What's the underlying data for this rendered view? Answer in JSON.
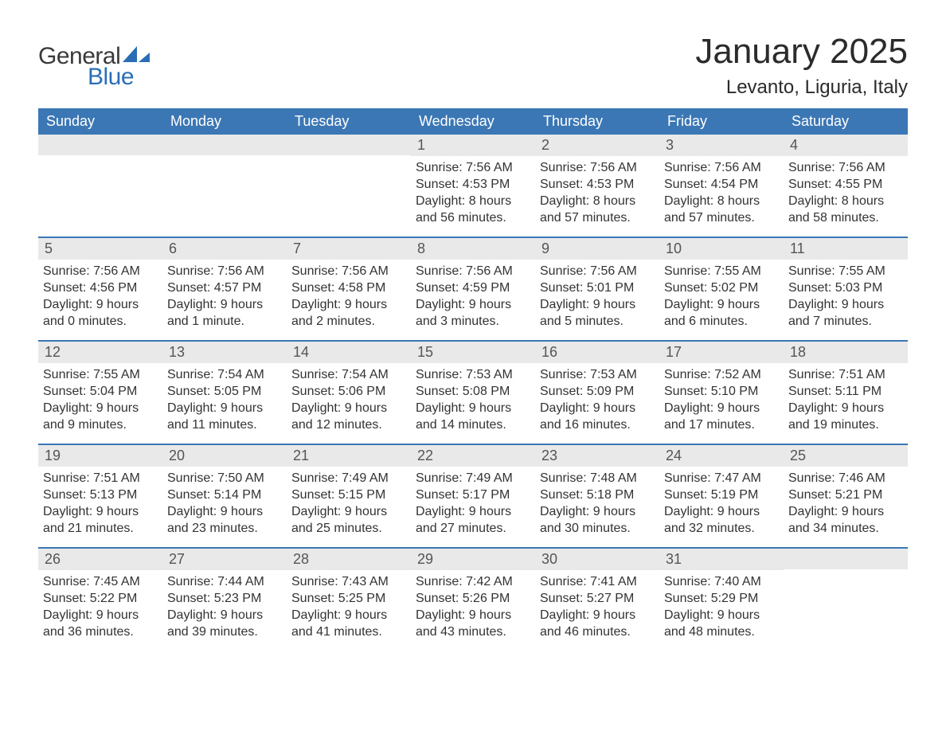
{
  "logo": {
    "word1": "General",
    "word2": "Blue",
    "accent_color": "#2a6eb6",
    "text_color": "#3a3a3a"
  },
  "title": "January 2025",
  "location": "Levanto, Liguria, Italy",
  "colors": {
    "header_bg": "#3c77b5",
    "header_text": "#ffffff",
    "daynum_bg": "#e9e9e9",
    "daynum_text": "#555555",
    "body_text": "#333333",
    "week_divider": "#3c77b5",
    "page_bg": "#ffffff"
  },
  "fonts": {
    "title_size_pt": 33,
    "location_size_pt": 18,
    "dayhead_size_pt": 14,
    "daynum_size_pt": 14,
    "body_size_pt": 12
  },
  "layout": {
    "columns": 7,
    "rows": 5,
    "start_day_index": 3
  },
  "weekdays": [
    "Sunday",
    "Monday",
    "Tuesday",
    "Wednesday",
    "Thursday",
    "Friday",
    "Saturday"
  ],
  "weeks": [
    [
      null,
      null,
      null,
      {
        "n": "1",
        "sunrise": "Sunrise: 7:56 AM",
        "sunset": "Sunset: 4:53 PM",
        "dl1": "Daylight: 8 hours",
        "dl2": "and 56 minutes."
      },
      {
        "n": "2",
        "sunrise": "Sunrise: 7:56 AM",
        "sunset": "Sunset: 4:53 PM",
        "dl1": "Daylight: 8 hours",
        "dl2": "and 57 minutes."
      },
      {
        "n": "3",
        "sunrise": "Sunrise: 7:56 AM",
        "sunset": "Sunset: 4:54 PM",
        "dl1": "Daylight: 8 hours",
        "dl2": "and 57 minutes."
      },
      {
        "n": "4",
        "sunrise": "Sunrise: 7:56 AM",
        "sunset": "Sunset: 4:55 PM",
        "dl1": "Daylight: 8 hours",
        "dl2": "and 58 minutes."
      }
    ],
    [
      {
        "n": "5",
        "sunrise": "Sunrise: 7:56 AM",
        "sunset": "Sunset: 4:56 PM",
        "dl1": "Daylight: 9 hours",
        "dl2": "and 0 minutes."
      },
      {
        "n": "6",
        "sunrise": "Sunrise: 7:56 AM",
        "sunset": "Sunset: 4:57 PM",
        "dl1": "Daylight: 9 hours",
        "dl2": "and 1 minute."
      },
      {
        "n": "7",
        "sunrise": "Sunrise: 7:56 AM",
        "sunset": "Sunset: 4:58 PM",
        "dl1": "Daylight: 9 hours",
        "dl2": "and 2 minutes."
      },
      {
        "n": "8",
        "sunrise": "Sunrise: 7:56 AM",
        "sunset": "Sunset: 4:59 PM",
        "dl1": "Daylight: 9 hours",
        "dl2": "and 3 minutes."
      },
      {
        "n": "9",
        "sunrise": "Sunrise: 7:56 AM",
        "sunset": "Sunset: 5:01 PM",
        "dl1": "Daylight: 9 hours",
        "dl2": "and 5 minutes."
      },
      {
        "n": "10",
        "sunrise": "Sunrise: 7:55 AM",
        "sunset": "Sunset: 5:02 PM",
        "dl1": "Daylight: 9 hours",
        "dl2": "and 6 minutes."
      },
      {
        "n": "11",
        "sunrise": "Sunrise: 7:55 AM",
        "sunset": "Sunset: 5:03 PM",
        "dl1": "Daylight: 9 hours",
        "dl2": "and 7 minutes."
      }
    ],
    [
      {
        "n": "12",
        "sunrise": "Sunrise: 7:55 AM",
        "sunset": "Sunset: 5:04 PM",
        "dl1": "Daylight: 9 hours",
        "dl2": "and 9 minutes."
      },
      {
        "n": "13",
        "sunrise": "Sunrise: 7:54 AM",
        "sunset": "Sunset: 5:05 PM",
        "dl1": "Daylight: 9 hours",
        "dl2": "and 11 minutes."
      },
      {
        "n": "14",
        "sunrise": "Sunrise: 7:54 AM",
        "sunset": "Sunset: 5:06 PM",
        "dl1": "Daylight: 9 hours",
        "dl2": "and 12 minutes."
      },
      {
        "n": "15",
        "sunrise": "Sunrise: 7:53 AM",
        "sunset": "Sunset: 5:08 PM",
        "dl1": "Daylight: 9 hours",
        "dl2": "and 14 minutes."
      },
      {
        "n": "16",
        "sunrise": "Sunrise: 7:53 AM",
        "sunset": "Sunset: 5:09 PM",
        "dl1": "Daylight: 9 hours",
        "dl2": "and 16 minutes."
      },
      {
        "n": "17",
        "sunrise": "Sunrise: 7:52 AM",
        "sunset": "Sunset: 5:10 PM",
        "dl1": "Daylight: 9 hours",
        "dl2": "and 17 minutes."
      },
      {
        "n": "18",
        "sunrise": "Sunrise: 7:51 AM",
        "sunset": "Sunset: 5:11 PM",
        "dl1": "Daylight: 9 hours",
        "dl2": "and 19 minutes."
      }
    ],
    [
      {
        "n": "19",
        "sunrise": "Sunrise: 7:51 AM",
        "sunset": "Sunset: 5:13 PM",
        "dl1": "Daylight: 9 hours",
        "dl2": "and 21 minutes."
      },
      {
        "n": "20",
        "sunrise": "Sunrise: 7:50 AM",
        "sunset": "Sunset: 5:14 PM",
        "dl1": "Daylight: 9 hours",
        "dl2": "and 23 minutes."
      },
      {
        "n": "21",
        "sunrise": "Sunrise: 7:49 AM",
        "sunset": "Sunset: 5:15 PM",
        "dl1": "Daylight: 9 hours",
        "dl2": "and 25 minutes."
      },
      {
        "n": "22",
        "sunrise": "Sunrise: 7:49 AM",
        "sunset": "Sunset: 5:17 PM",
        "dl1": "Daylight: 9 hours",
        "dl2": "and 27 minutes."
      },
      {
        "n": "23",
        "sunrise": "Sunrise: 7:48 AM",
        "sunset": "Sunset: 5:18 PM",
        "dl1": "Daylight: 9 hours",
        "dl2": "and 30 minutes."
      },
      {
        "n": "24",
        "sunrise": "Sunrise: 7:47 AM",
        "sunset": "Sunset: 5:19 PM",
        "dl1": "Daylight: 9 hours",
        "dl2": "and 32 minutes."
      },
      {
        "n": "25",
        "sunrise": "Sunrise: 7:46 AM",
        "sunset": "Sunset: 5:21 PM",
        "dl1": "Daylight: 9 hours",
        "dl2": "and 34 minutes."
      }
    ],
    [
      {
        "n": "26",
        "sunrise": "Sunrise: 7:45 AM",
        "sunset": "Sunset: 5:22 PM",
        "dl1": "Daylight: 9 hours",
        "dl2": "and 36 minutes."
      },
      {
        "n": "27",
        "sunrise": "Sunrise: 7:44 AM",
        "sunset": "Sunset: 5:23 PM",
        "dl1": "Daylight: 9 hours",
        "dl2": "and 39 minutes."
      },
      {
        "n": "28",
        "sunrise": "Sunrise: 7:43 AM",
        "sunset": "Sunset: 5:25 PM",
        "dl1": "Daylight: 9 hours",
        "dl2": "and 41 minutes."
      },
      {
        "n": "29",
        "sunrise": "Sunrise: 7:42 AM",
        "sunset": "Sunset: 5:26 PM",
        "dl1": "Daylight: 9 hours",
        "dl2": "and 43 minutes."
      },
      {
        "n": "30",
        "sunrise": "Sunrise: 7:41 AM",
        "sunset": "Sunset: 5:27 PM",
        "dl1": "Daylight: 9 hours",
        "dl2": "and 46 minutes."
      },
      {
        "n": "31",
        "sunrise": "Sunrise: 7:40 AM",
        "sunset": "Sunset: 5:29 PM",
        "dl1": "Daylight: 9 hours",
        "dl2": "and 48 minutes."
      },
      null
    ]
  ]
}
